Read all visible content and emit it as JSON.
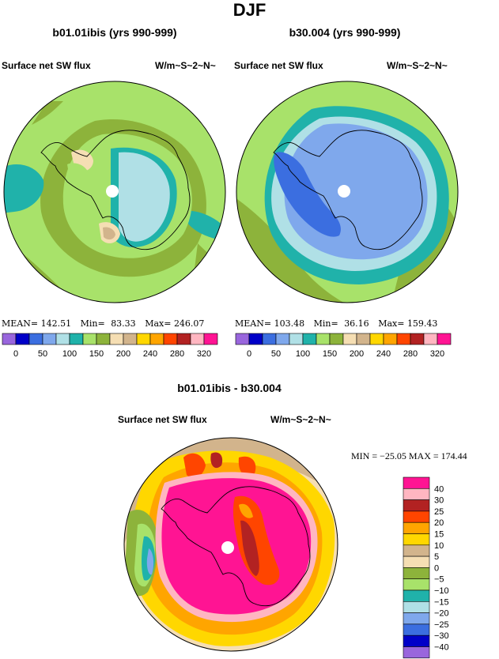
{
  "main_title": "DJF",
  "panels": [
    {
      "title": "b01.01ibis (yrs 990-999)",
      "left_label": "Surface net SW flux",
      "right_label": "W/m~S~2~N~",
      "stats": {
        "mean_label": "MEAN=",
        "mean": "142.51",
        "min_label": "Min=",
        "min": "83.33",
        "max_label": "Max=",
        "max": "246.07"
      }
    },
    {
      "title": "b30.004 (yrs 990-999)",
      "left_label": "Surface net SW flux",
      "right_label": "W/m~S~2~N~",
      "stats": {
        "mean_label": "MEAN=",
        "mean": "103.48",
        "min_label": "Min=",
        "min": "36.16",
        "max_label": "Max=",
        "max": "159.43"
      }
    }
  ],
  "abs_colorbar": {
    "colors": [
      "#9966dd",
      "#0000c8",
      "#3b6ee0",
      "#7fa8ec",
      "#b0e0e6",
      "#20b2aa",
      "#a8e26a",
      "#8db33b",
      "#f5deb3",
      "#d2b48c",
      "#ffd700",
      "#ffa500",
      "#ff4500",
      "#b22222",
      "#ffb6c1",
      "#ff1493"
    ],
    "labels": [
      "0",
      "50",
      "100",
      "150",
      "200",
      "240",
      "280",
      "320"
    ]
  },
  "diff_panel": {
    "title": "b01.01ibis - b30.004",
    "left_label": "Surface net SW flux",
    "right_label": "W/m~S~2~N~",
    "stats": "MIN = −25.05 MAX = 174.44"
  },
  "diff_colorbar": {
    "colors": [
      "#9966dd",
      "#0000c8",
      "#3b6ee0",
      "#7fa8ec",
      "#b0e0e6",
      "#20b2aa",
      "#a8e26a",
      "#8db33b",
      "#f5deb3",
      "#d2b48c",
      "#ffd700",
      "#ffa500",
      "#ff4500",
      "#b22222",
      "#ffb6c1",
      "#ff1493"
    ],
    "labels": [
      "−40",
      "−30",
      "−25",
      "−20",
      "−15",
      "−10",
      "−5",
      "0",
      "5",
      "10",
      "15",
      "20",
      "25",
      "30",
      "40"
    ]
  },
  "chart_data": [
    {
      "type": "heatmap",
      "title": "b01.01ibis (yrs 990-999)",
      "variable": "Surface net SW flux",
      "units": "W/m~S~2~N~",
      "stats": {
        "mean": 142.51,
        "min": 83.33,
        "max": 246.07
      },
      "levels": [
        0,
        25,
        50,
        75,
        100,
        125,
        150,
        175,
        200,
        220,
        240,
        260,
        280,
        300,
        320
      ]
    },
    {
      "type": "heatmap",
      "title": "b30.004 (yrs 990-999)",
      "variable": "Surface net SW flux",
      "units": "W/m~S~2~N~",
      "stats": {
        "mean": 103.48,
        "min": 36.16,
        "max": 159.43
      },
      "levels": [
        0,
        25,
        50,
        75,
        100,
        125,
        150,
        175,
        200,
        220,
        240,
        260,
        280,
        300,
        320
      ]
    },
    {
      "type": "heatmap",
      "title": "b01.01ibis - b30.004",
      "variable": "Surface net SW flux",
      "units": "W/m~S~2~N~",
      "stats": {
        "min": -25.05,
        "max": 174.44
      },
      "levels": [
        -40,
        -30,
        -25,
        -20,
        -15,
        -10,
        -5,
        0,
        5,
        10,
        15,
        20,
        25,
        30,
        40
      ]
    }
  ]
}
